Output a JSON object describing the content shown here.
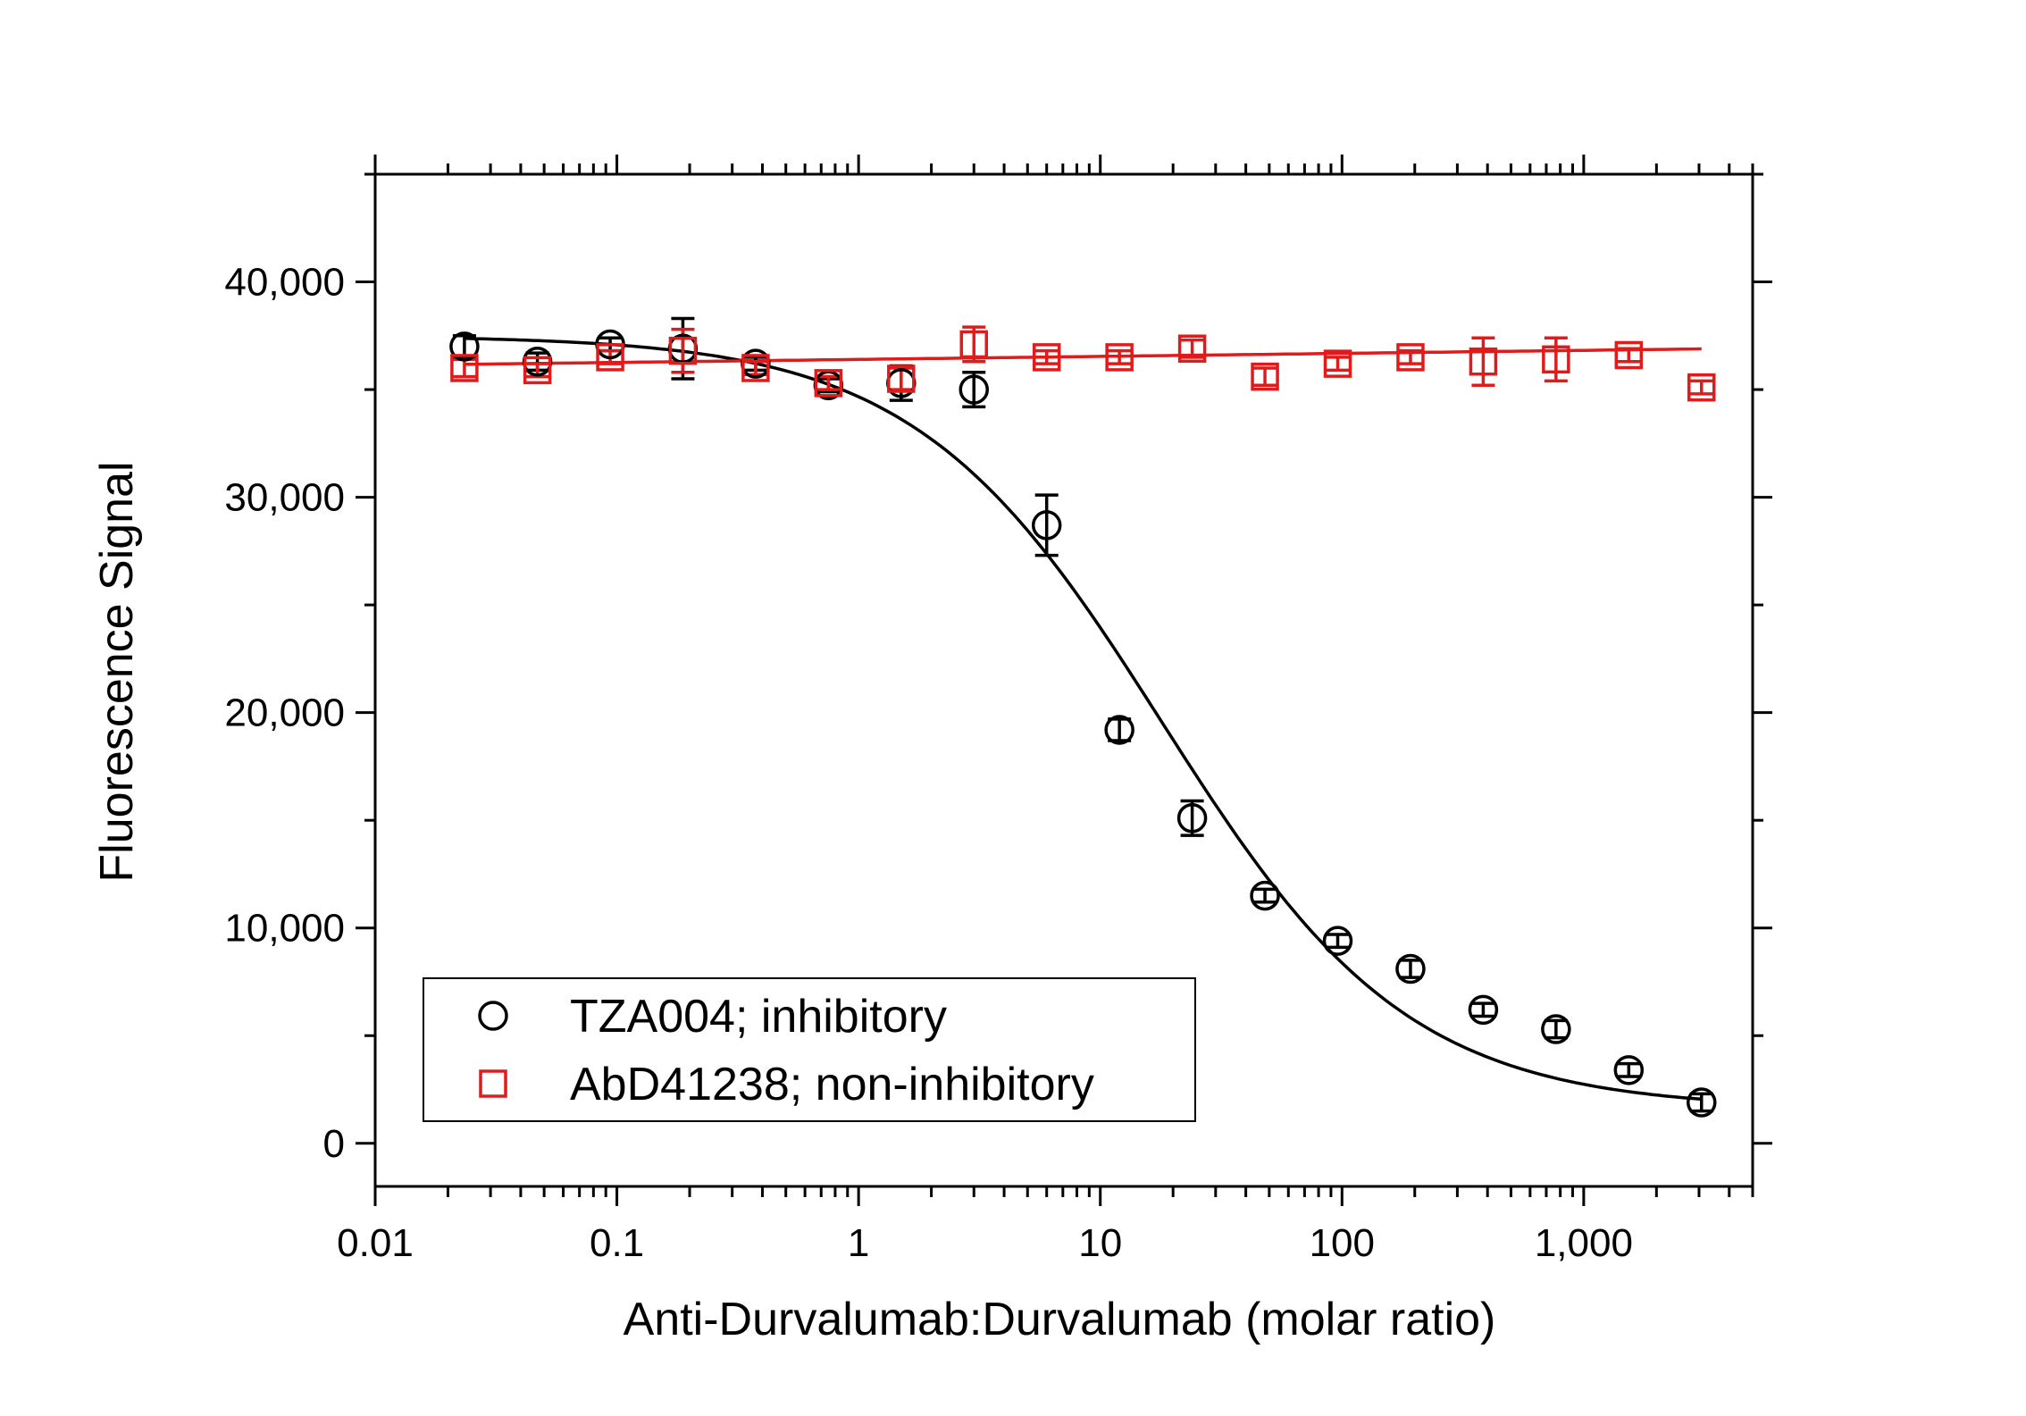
{
  "chart_data": {
    "type": "scatter",
    "xlabel": "Anti-Durvalumab:Durvalumab (molar ratio)",
    "ylabel": "Fluorescence Signal",
    "xscale": "log",
    "xlim": [
      0.01,
      5000
    ],
    "ylim": [
      -2000,
      45000
    ],
    "x_ticks": [
      {
        "value": 0.01,
        "label": "0.01"
      },
      {
        "value": 0.1,
        "label": "0.1"
      },
      {
        "value": 1,
        "label": "1"
      },
      {
        "value": 10,
        "label": "10"
      },
      {
        "value": 100,
        "label": "100"
      },
      {
        "value": 1000,
        "label": "1,000"
      }
    ],
    "y_ticks": [
      {
        "value": 0,
        "label": "0"
      },
      {
        "value": 10000,
        "label": "10,000"
      },
      {
        "value": 20000,
        "label": "20,000"
      },
      {
        "value": 30000,
        "label": "30,000"
      },
      {
        "value": 40000,
        "label": "40,000"
      }
    ],
    "legend_position": "bottom-left",
    "grid": false,
    "series": [
      {
        "name": "TZA004; inhibitory",
        "marker": "circle",
        "color": "#000000",
        "x": [
          0.0234,
          0.0469,
          0.0938,
          0.1875,
          0.375,
          0.75,
          1.5,
          3,
          6,
          12,
          24,
          48,
          96,
          192,
          384,
          768,
          1536,
          3072
        ],
        "y": [
          37000,
          36300,
          37100,
          36900,
          36200,
          35200,
          35300,
          35000,
          28700,
          19200,
          15100,
          11500,
          9400,
          8100,
          6200,
          5300,
          3400,
          1900
        ],
        "err": [
          500,
          400,
          300,
          1400,
          300,
          300,
          800,
          800,
          1400,
          500,
          800,
          300,
          300,
          400,
          300,
          400,
          300,
          400
        ],
        "fit": {
          "top": 37500,
          "bottom": 1600,
          "ec50": 18,
          "hill": 0.85
        }
      },
      {
        "name": "AbD41238; non-inhibitory",
        "marker": "square",
        "color": "#e01b1b",
        "x": [
          0.0234,
          0.0469,
          0.0938,
          0.1875,
          0.375,
          0.75,
          1.5,
          3,
          6,
          12,
          24,
          48,
          96,
          192,
          384,
          768,
          1536,
          3072
        ],
        "y": [
          36000,
          35900,
          36500,
          36800,
          36000,
          35300,
          35500,
          37100,
          36500,
          36500,
          36900,
          35600,
          36200,
          36500,
          36300,
          36400,
          36600,
          35100
        ],
        "err": [
          400,
          300,
          300,
          1000,
          300,
          300,
          500,
          800,
          300,
          300,
          400,
          400,
          300,
          300,
          1100,
          1000,
          300,
          300
        ],
        "fit": {
          "slope": 140,
          "intercept": 36400
        }
      }
    ]
  }
}
